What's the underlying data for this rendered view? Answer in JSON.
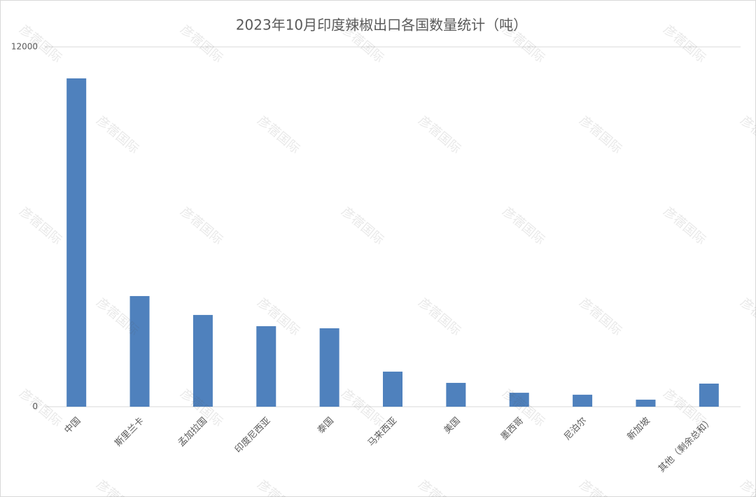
{
  "chart_data": {
    "type": "bar",
    "title": "2023年10月印度辣椒出口各国数量统计（吨）",
    "categories": [
      "中国",
      "斯里兰卡",
      "孟加拉国",
      "印度尼西亚",
      "泰国",
      "马来西亚",
      "美国",
      "墨西哥",
      "尼泊尔",
      "新加坡",
      "其他（剩余总和）"
    ],
    "values": [
      10950,
      3690,
      3060,
      2685,
      2615,
      1170,
      795,
      465,
      400,
      235,
      770
    ],
    "color": "#4f81bd",
    "ylim": [
      0,
      12000
    ],
    "yticks": [
      0,
      12000
    ],
    "grid": true,
    "watermark": "彦蓿国际"
  }
}
